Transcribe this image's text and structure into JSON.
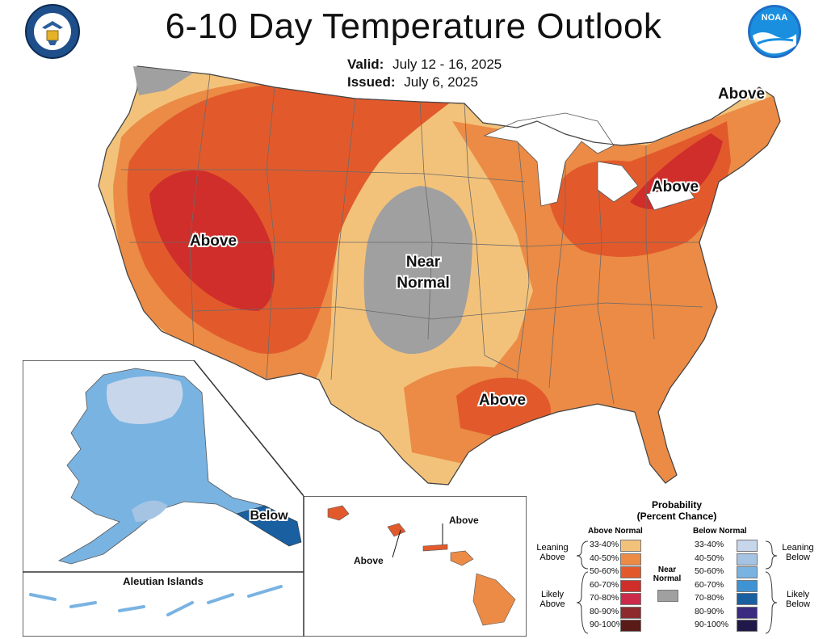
{
  "header": {
    "title": "6-10 Day Temperature Outlook",
    "valid_label": "Valid:",
    "valid_value": "July 12 - 16, 2025",
    "issued_label": "Issued:",
    "issued_value": "July 6, 2025",
    "noaa_logo_text": "NOAA"
  },
  "map": {
    "labels": {
      "west_above": "Above",
      "central_near": "Near",
      "central_normal": "Normal",
      "northeast_above": "Above",
      "greatlakes_above": "Above",
      "gulf_above": "Above",
      "alaska_below": "Below",
      "hawaii_above_1": "Above",
      "hawaii_above_2": "Above"
    },
    "aleutian_title": "Aleutian Islands"
  },
  "legend": {
    "title_line1": "Probability",
    "title_line2": "(Percent Chance)",
    "above_header": "Above Normal",
    "below_header": "Below Normal",
    "near_normal_line1": "Near",
    "near_normal_line2": "Normal",
    "leaning_above_1": "Leaning",
    "leaning_above_2": "Above",
    "likely_above_1": "Likely",
    "likely_above_2": "Above",
    "leaning_below_1": "Leaning",
    "leaning_below_2": "Below",
    "likely_below_1": "Likely",
    "likely_below_2": "Below",
    "above_bins": [
      "33-40%",
      "40-50%",
      "50-60%",
      "60-70%",
      "70-80%",
      "80-90%",
      "90-100%"
    ],
    "below_bins": [
      "33-40%",
      "40-50%",
      "50-60%",
      "60-70%",
      "70-80%",
      "80-90%",
      "90-100%"
    ]
  },
  "colors": {
    "above": [
      "#f3c27a",
      "#eb8b46",
      "#e25a2c",
      "#cf2e2a",
      "#cc2a4a",
      "#8c2a2e",
      "#5a1a18"
    ],
    "below": [
      "#c7d6ea",
      "#a5c4e4",
      "#79b3e2",
      "#3f93d3",
      "#1a5fa0",
      "#3a2a80",
      "#201848"
    ],
    "near": "#a0a0a0"
  }
}
